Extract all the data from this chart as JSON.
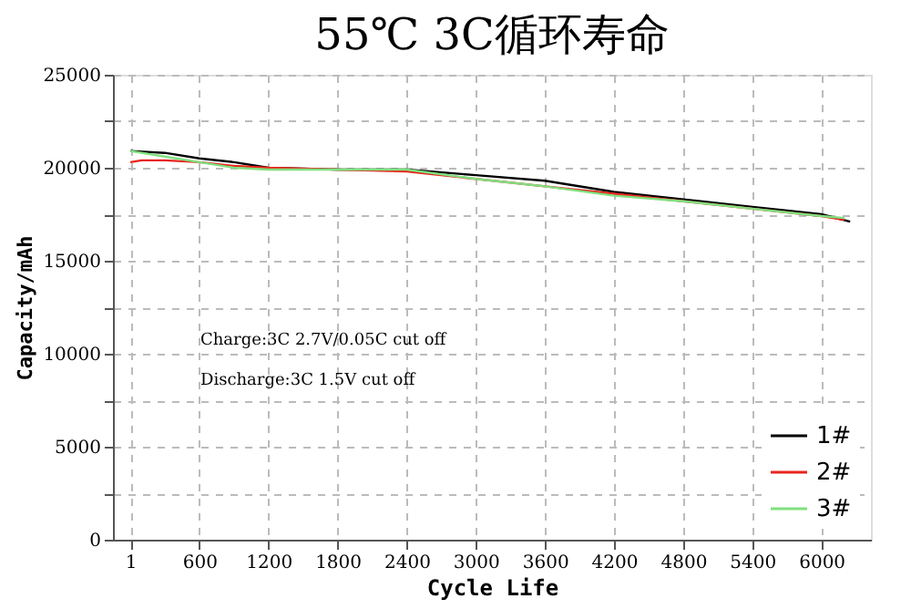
{
  "chart_data": {
    "type": "line",
    "title": "55℃ 3C循环寿命",
    "xlabel": "Cycle Life",
    "ylabel": "Capacity/mAh",
    "xlim": [
      -150,
      6430
    ],
    "xticks": [
      1,
      600,
      1200,
      1800,
      2400,
      3000,
      3600,
      4200,
      4800,
      5400,
      6000
    ],
    "ylim": [
      0,
      25000
    ],
    "yticks": [
      0,
      {
        "value": 2500,
        "label": null
      },
      5000,
      {
        "value": 7500,
        "label": null
      },
      10000,
      {
        "value": 12500,
        "label": null
      },
      15000,
      {
        "value": 17500,
        "label": null
      },
      20000,
      {
        "value": 22500,
        "label": null
      },
      25000
    ],
    "grid": true,
    "legend": "bottom right",
    "line_style": "solid",
    "marker": "none",
    "annotations": [
      "Charge:3C 2.7V/0.05C cut off",
      "Discharge:3C 1.5V cut off"
    ],
    "series": [
      {
        "name": "1#",
        "color": "#000000",
        "x": [
          1,
          300,
          600,
          900,
          1200,
          1800,
          2400,
          3000,
          3600,
          4200,
          4800,
          5400,
          6000,
          6250
        ],
        "values": [
          20900,
          20800,
          20500,
          20300,
          20000,
          19900,
          19900,
          19600,
          19300,
          18700,
          18300,
          17900,
          17500,
          17100
        ]
      },
      {
        "name": "2#",
        "color": "#e8251c",
        "x": [
          1,
          100,
          300,
          600,
          900,
          1200,
          1800,
          2400,
          3000,
          3600,
          4200,
          4800,
          5400,
          6000,
          6200
        ],
        "values": [
          20300,
          20400,
          20400,
          20300,
          20100,
          20000,
          19900,
          19800,
          19400,
          19000,
          18600,
          18200,
          17800,
          17400,
          17200
        ]
      },
      {
        "name": "3#",
        "color": "#7fe07f",
        "x": [
          1,
          300,
          600,
          900,
          1200,
          1800,
          2400,
          3000,
          3600,
          4200,
          4800,
          5400,
          6000,
          6200
        ],
        "values": [
          20900,
          20600,
          20300,
          20000,
          19900,
          19900,
          19900,
          19400,
          19000,
          18500,
          18200,
          17800,
          17400,
          17300
        ]
      }
    ]
  }
}
